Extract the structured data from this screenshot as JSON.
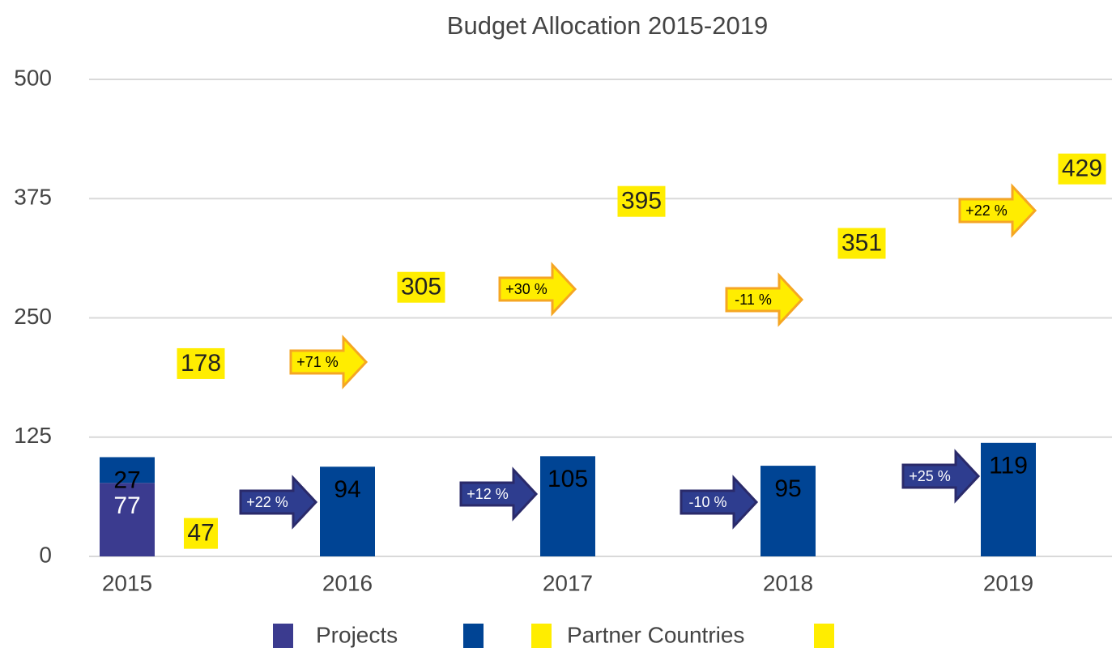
{
  "chart_data": {
    "type": "stacked_bar",
    "title": "Budget Allocation 2015-2019",
    "categories": [
      "2015",
      "2016",
      "2017",
      "2018",
      "2019"
    ],
    "ylim": [
      0,
      500
    ],
    "yticks": [
      0,
      125,
      250,
      375,
      500
    ],
    "grid": true,
    "series": [
      {
        "name": "Projects",
        "color": "#3b3b8f",
        "group": "a",
        "values": [
          77,
          null,
          null,
          null,
          null
        ]
      },
      {
        "name": null,
        "color": "#004494",
        "group": "a",
        "values": [
          27,
          94,
          105,
          95,
          119
        ]
      },
      {
        "name": "Partner Countries",
        "color": "#ffed00",
        "group": "b",
        "values": [
          47,
          null,
          null,
          null,
          null
        ]
      },
      {
        "name": null,
        "color": "#ffed00",
        "group": "b",
        "values": [
          178,
          305,
          395,
          351,
          429
        ]
      }
    ],
    "annotations": {
      "a": [
        "+22 %",
        "+12 %",
        "-10 %",
        "+25 %"
      ],
      "b": [
        "+71 %",
        "+30 %",
        "-11 %",
        "+22 %"
      ]
    }
  }
}
